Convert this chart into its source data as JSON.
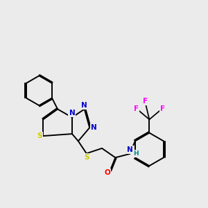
{
  "bg_color": "#ebebeb",
  "atom_colors": {
    "C": "#000000",
    "N": "#0000cc",
    "S": "#cccc00",
    "O": "#ff0000",
    "F": "#ff00ff",
    "H": "#008888"
  },
  "bond_color": "#000000",
  "figsize": [
    3.0,
    3.0
  ],
  "dpi": 100,
  "xlim": [
    0,
    10
  ],
  "ylim": [
    0,
    10
  ],
  "lw": 1.4
}
